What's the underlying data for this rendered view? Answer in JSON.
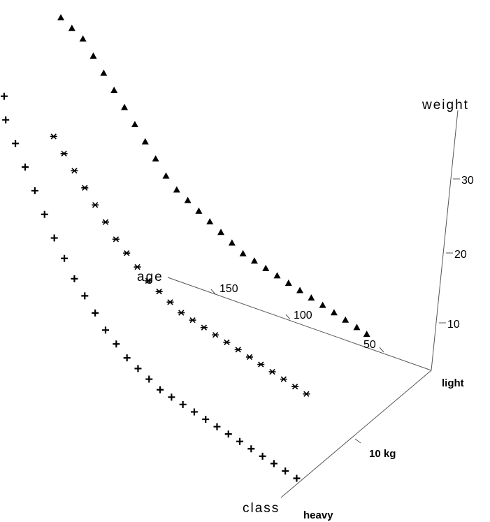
{
  "chart_data": {
    "type": "scatter",
    "projection": "3d",
    "axes": {
      "age": {
        "label": "age",
        "ticks": [
          50,
          100,
          150
        ]
      },
      "weight": {
        "label": "weight",
        "ticks": [
          10,
          20,
          30
        ]
      },
      "class": {
        "label": "class",
        "ticks": [
          "light",
          "10 kg",
          "heavy"
        ]
      }
    },
    "grid": false,
    "legend": "none",
    "series": [
      {
        "marker": "triangle",
        "class_position": 0.0,
        "points": [
          [
            45,
            2
          ],
          [
            52,
            2.5
          ],
          [
            60,
            3
          ],
          [
            68,
            3.5
          ],
          [
            76,
            4
          ],
          [
            84,
            4.5
          ],
          [
            92,
            5
          ],
          [
            100,
            5.5
          ],
          [
            108,
            6
          ],
          [
            116,
            6.5
          ],
          [
            124,
            7
          ],
          [
            132,
            7.5
          ],
          [
            140,
            8.5
          ],
          [
            148,
            9.5
          ],
          [
            156,
            10.5
          ],
          [
            164,
            11.5
          ],
          [
            172,
            12.5
          ],
          [
            180,
            13.5
          ],
          [
            188,
            15
          ],
          [
            196,
            17
          ],
          [
            204,
            19
          ],
          [
            212,
            21
          ],
          [
            220,
            23
          ],
          [
            228,
            25
          ],
          [
            236,
            27
          ],
          [
            244,
            29
          ],
          [
            252,
            31
          ],
          [
            260,
            32
          ],
          [
            268,
            33
          ]
        ]
      },
      {
        "marker": "star",
        "class_position": 0.45,
        "points": [
          [
            40,
            2
          ],
          [
            48,
            2.5
          ],
          [
            56,
            3
          ],
          [
            64,
            3.5
          ],
          [
            72,
            4
          ],
          [
            80,
            4.5
          ],
          [
            88,
            5
          ],
          [
            96,
            5.5
          ],
          [
            104,
            6
          ],
          [
            112,
            6.5
          ],
          [
            120,
            7
          ],
          [
            128,
            7.5
          ],
          [
            136,
            8.5
          ],
          [
            144,
            9.5
          ],
          [
            152,
            10.5
          ],
          [
            160,
            12
          ],
          [
            168,
            13.5
          ],
          [
            176,
            15
          ],
          [
            184,
            17
          ],
          [
            192,
            19
          ],
          [
            200,
            21
          ],
          [
            208,
            23
          ],
          [
            216,
            25
          ],
          [
            224,
            27
          ]
        ]
      },
      {
        "marker": "plus",
        "class_position": 0.9,
        "points": [
          [
            0,
            1
          ],
          [
            8,
            1.5
          ],
          [
            16,
            2
          ],
          [
            24,
            2.5
          ],
          [
            32,
            3
          ],
          [
            40,
            3.5
          ],
          [
            48,
            4
          ],
          [
            56,
            4.5
          ],
          [
            64,
            5
          ],
          [
            72,
            5.5
          ],
          [
            80,
            6
          ],
          [
            88,
            6.5
          ],
          [
            96,
            7
          ],
          [
            104,
            8
          ],
          [
            112,
            9
          ],
          [
            120,
            10
          ],
          [
            128,
            11.5
          ],
          [
            136,
            13
          ],
          [
            144,
            15
          ],
          [
            152,
            17
          ],
          [
            160,
            19
          ],
          [
            168,
            21.5
          ],
          [
            176,
            24
          ],
          [
            184,
            27
          ],
          [
            192,
            30
          ],
          [
            200,
            33
          ],
          [
            208,
            36
          ],
          [
            216,
            39
          ],
          [
            224,
            42
          ]
        ]
      }
    ]
  },
  "colors": {
    "axis": "#555555",
    "marks": "#000000",
    "background": "#ffffff"
  }
}
